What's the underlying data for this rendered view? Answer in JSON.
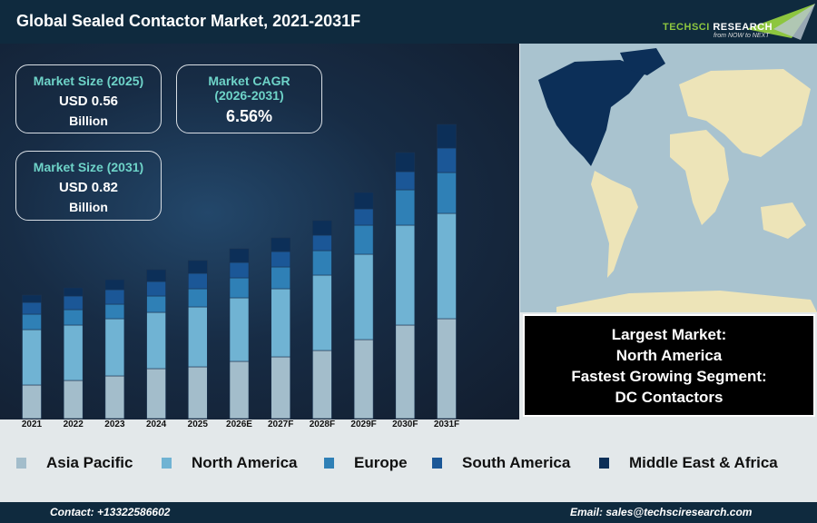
{
  "header": {
    "title": "Global Sealed Contactor Market, 2021-2031F",
    "logo_text": "TechSci Research",
    "logo_tagline": "from NOW to NEXT"
  },
  "kpis": {
    "size_2025": {
      "label": "Market Size (2025)",
      "value": "USD 0.56",
      "unit": "Billion"
    },
    "cagr": {
      "label": "Market CAGR",
      "period": "(2026-2031)",
      "value": "6.56%"
    },
    "size_2031": {
      "label": "Market Size (2031)",
      "value": "USD 0.82",
      "unit": "Billion"
    }
  },
  "summary": {
    "line1": "Largest Market:",
    "line2": "North America",
    "line3": "Fastest Growing Segment:",
    "line4": "DC Contactors"
  },
  "footer": {
    "contact": "Contact: +13322586602",
    "email": "Email: sales@techsciresearch.com"
  },
  "chart_data": {
    "type": "bar",
    "stacked": true,
    "grid": false,
    "legend_position": "bottom",
    "y_axis_shown": false,
    "categories": [
      "2021",
      "2022",
      "2023",
      "2024",
      "2025",
      "2026E",
      "2027F",
      "2028F",
      "2029F",
      "2030F",
      "2031F"
    ],
    "series": [
      {
        "name": "Asia Pacific",
        "color": "#a3bdcb",
        "values": [
          37,
          42,
          47,
          55,
          57,
          63,
          68,
          75,
          87,
          103,
          110
        ]
      },
      {
        "name": "North America",
        "color": "#70b3d3",
        "values": [
          61,
          61,
          63,
          62,
          66,
          70,
          75,
          83,
          94,
          110,
          116
        ]
      },
      {
        "name": "Europe",
        "color": "#2f80b6",
        "values": [
          17,
          17,
          16,
          18,
          20,
          22,
          24,
          27,
          32,
          39,
          45
        ]
      },
      {
        "name": "South America",
        "color": "#1b5797",
        "values": [
          13,
          15,
          16,
          16,
          17,
          17,
          17,
          17,
          18,
          20,
          27
        ]
      },
      {
        "name": "Middle East & Africa",
        "color": "#0c2f58",
        "values": [
          8,
          9,
          11,
          13,
          14,
          15,
          15,
          16,
          18,
          21,
          26
        ]
      }
    ]
  }
}
